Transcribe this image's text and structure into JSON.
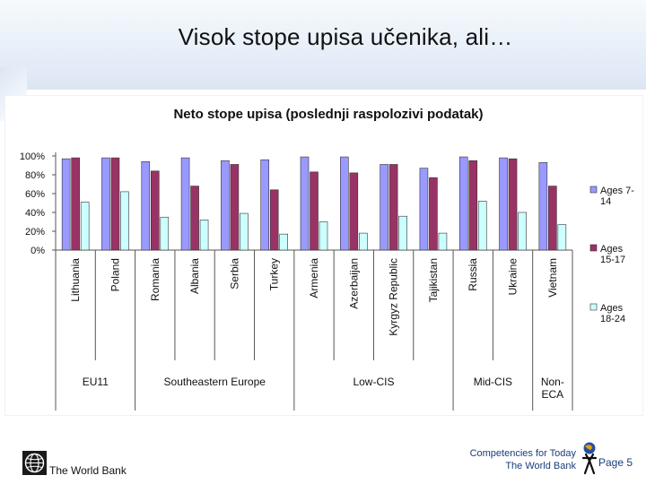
{
  "slide": {
    "title": "Visok stope upisa učenika, ali…",
    "footer": {
      "org": "The World Bank",
      "tagline": "Competencies for Today",
      "tagline_org": "The World Bank",
      "page": "Page 5"
    }
  },
  "chart_data": {
    "type": "bar",
    "title": "Neto stope upisa (poslednji raspolozivi podatak)",
    "categories": [
      "Lithuania",
      "Poland",
      "Romania",
      "Albania",
      "Serbia",
      "Turkey",
      "Armenia",
      "Azerbaijan",
      "Kyrgyz Republic",
      "Tajikistan",
      "Russia",
      "Ukraine",
      "Vietnam"
    ],
    "series": [
      {
        "name": "Ages 7-14",
        "color": "#9999ff",
        "values": [
          97,
          98,
          94,
          98,
          95,
          96,
          99,
          99,
          91,
          87,
          99,
          98,
          93
        ]
      },
      {
        "name": "Ages 15-17",
        "color": "#993366",
        "values": [
          98,
          98,
          84,
          68,
          91,
          64,
          83,
          82,
          91,
          77,
          95,
          97,
          68
        ]
      },
      {
        "name": "Ages 18-24",
        "color": "#ccffff",
        "values": [
          51,
          62,
          35,
          32,
          39,
          17,
          30,
          18,
          36,
          18,
          52,
          40,
          27
        ]
      }
    ],
    "groups": [
      {
        "label": "EU11",
        "lines": [
          "EU11"
        ],
        "span": [
          0,
          1
        ]
      },
      {
        "label": "Southeastern Europe",
        "lines": [
          "Southeastern Europe"
        ],
        "span": [
          2,
          5
        ]
      },
      {
        "label": "Low-CIS",
        "lines": [
          "Low-CIS"
        ],
        "span": [
          6,
          9
        ]
      },
      {
        "label": "Mid-CIS",
        "lines": [
          "Mid-CIS"
        ],
        "span": [
          10,
          11
        ]
      },
      {
        "label": "Non-ECA",
        "lines": [
          "Non-",
          "ECA"
        ],
        "span": [
          12,
          12
        ]
      }
    ],
    "yticks": [
      "100%",
      "80%",
      "60%",
      "40%",
      "20%",
      "0%"
    ],
    "ylim": [
      0,
      100
    ],
    "legend": [
      {
        "lines": [
          "Ages 7-",
          "14"
        ]
      },
      {
        "lines": [
          "Ages",
          "15-17"
        ]
      },
      {
        "lines": [
          "Ages",
          "18-24"
        ]
      }
    ],
    "legend_position": "right",
    "grid": false
  }
}
